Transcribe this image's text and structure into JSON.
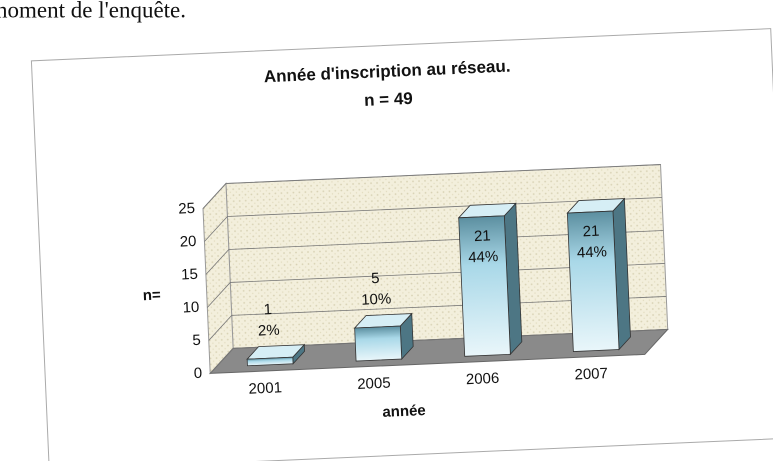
{
  "page_text": "noment de l'enquête.",
  "chart_data": {
    "type": "bar3d",
    "title": "Année d'inscription au réseau.",
    "subtitle": "n = 49",
    "x_label": "année",
    "y_label": "n=",
    "categories": [
      "2001",
      "2005",
      "2006",
      "2007"
    ],
    "values": [
      1,
      5,
      21,
      21
    ],
    "percentage_labels": [
      "2%",
      "10%",
      "44%",
      "44%"
    ],
    "ylim": [
      0,
      25
    ],
    "yticks": [
      0,
      5,
      10,
      15,
      20,
      25
    ],
    "grid": true,
    "color": "#a9d8e8"
  }
}
